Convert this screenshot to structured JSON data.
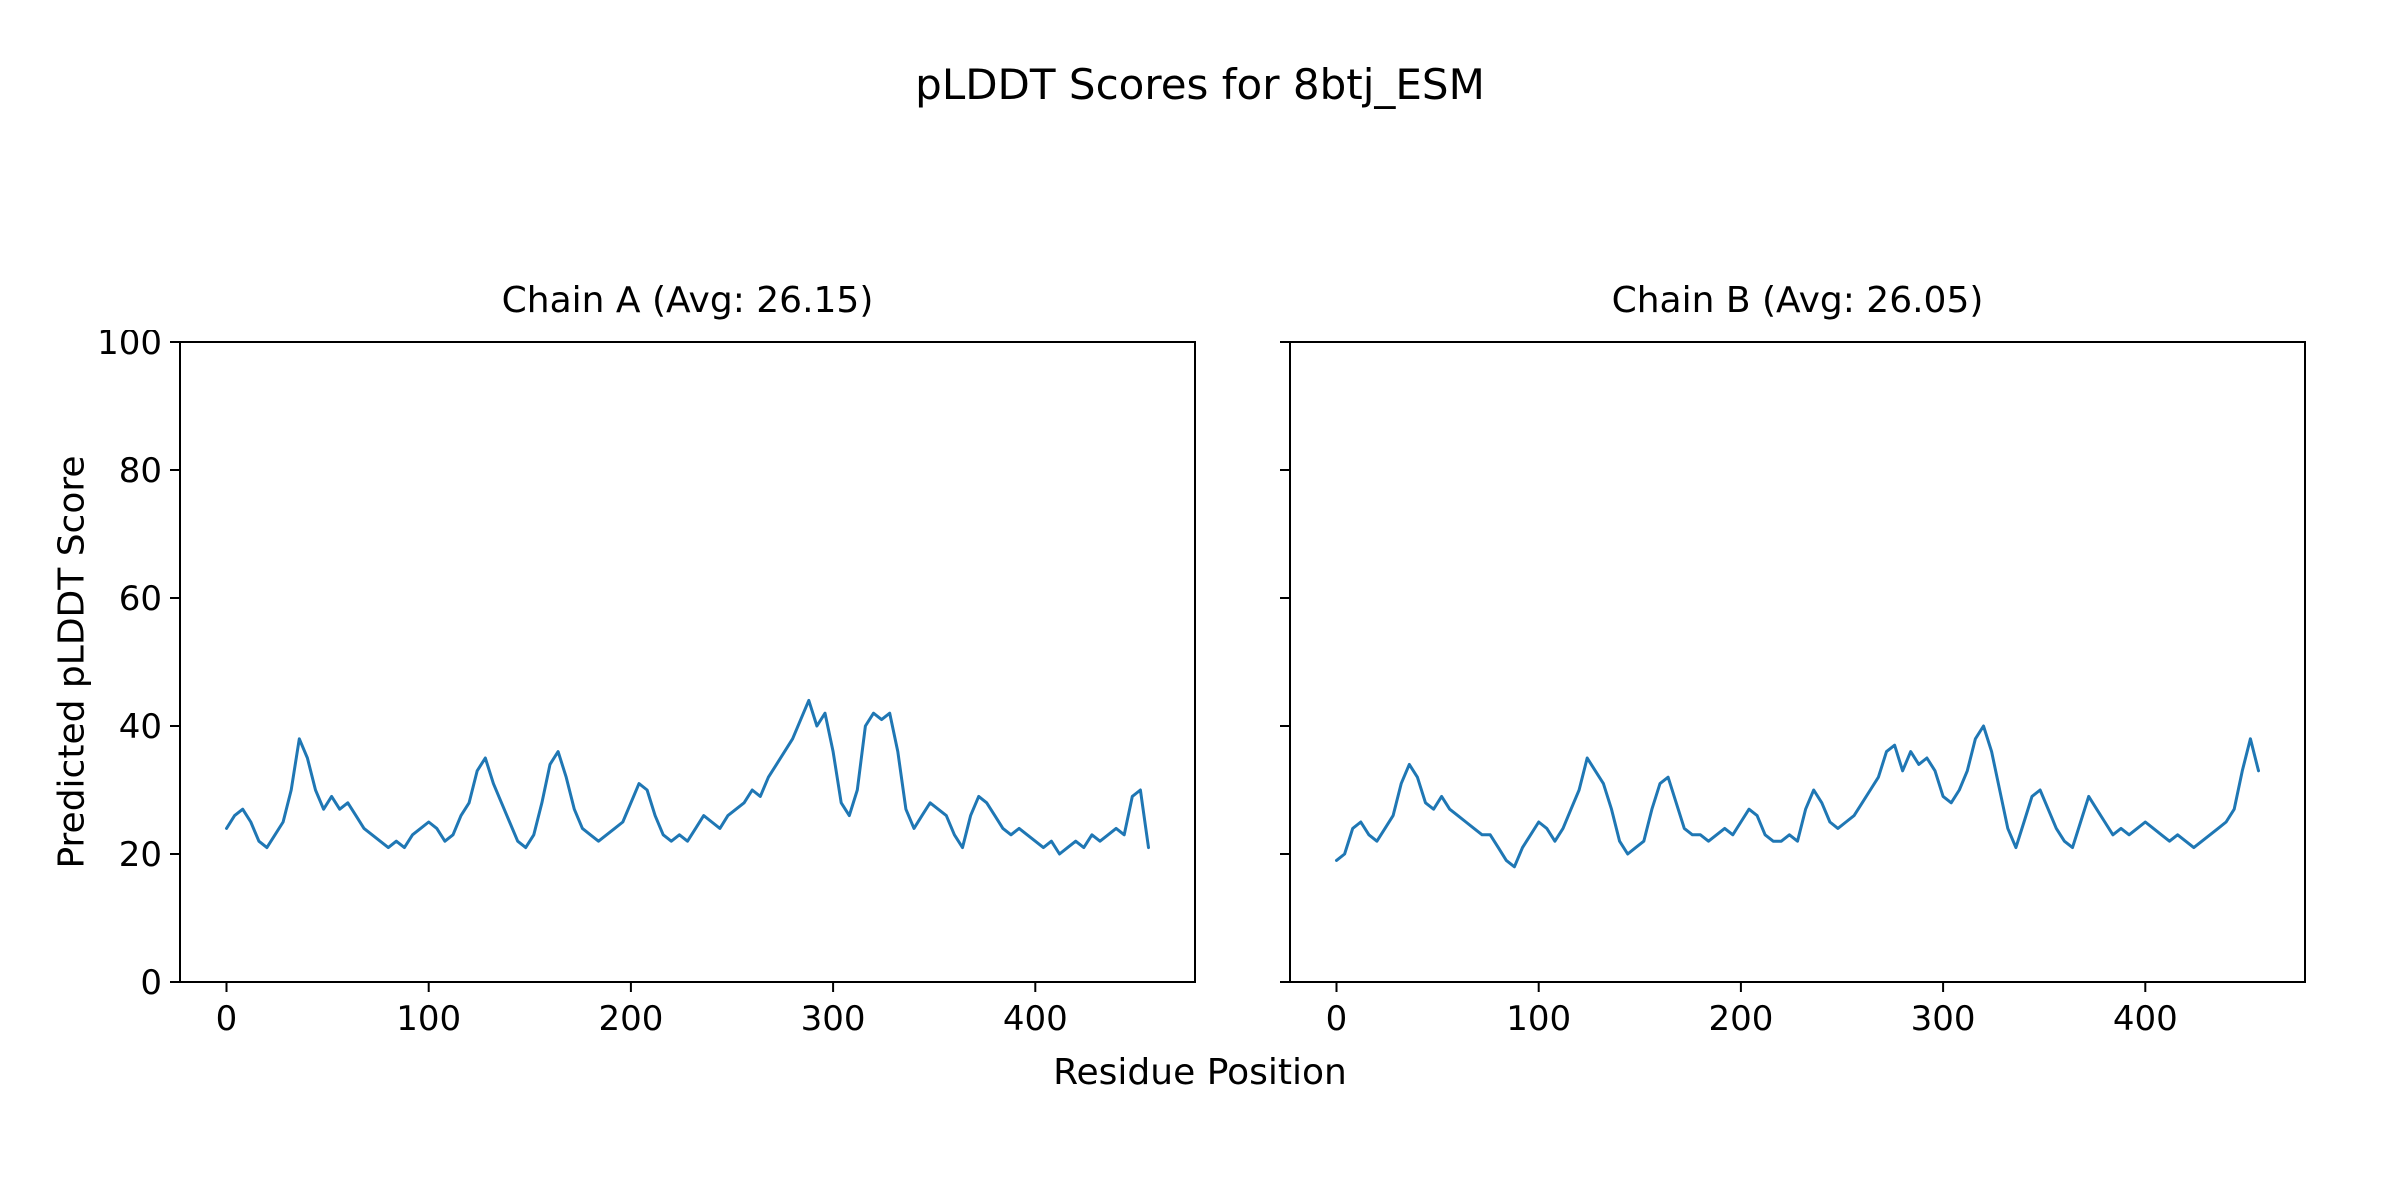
{
  "figure": {
    "title": "pLDDT Scores for 8btj_ESM"
  },
  "chart_data": {
    "type": "line",
    "title": "pLDDT Scores for 8btj_ESM",
    "xlabel": "Residue Position",
    "ylabel": "Predicted pLDDT Score",
    "line_color": "#1f77b4",
    "axis_color": "#000000",
    "xlim": [
      -23,
      479
    ],
    "ylim": [
      0,
      100
    ],
    "x_ticks": [
      0,
      100,
      200,
      300,
      400
    ],
    "y_ticks": [
      0,
      20,
      40,
      60,
      80,
      100
    ],
    "grid": false,
    "legend": "none",
    "subplots": [
      {
        "name": "chain-a",
        "title": "Chain A (Avg: 26.15)",
        "avg": 26.15,
        "x_start": 0,
        "x_step": 4,
        "values": [
          24,
          26,
          27,
          25,
          22,
          21,
          23,
          25,
          30,
          38,
          35,
          30,
          27,
          29,
          27,
          28,
          26,
          24,
          23,
          22,
          21,
          22,
          21,
          23,
          24,
          25,
          24,
          22,
          23,
          26,
          28,
          33,
          35,
          31,
          28,
          25,
          22,
          21,
          23,
          28,
          34,
          36,
          32,
          27,
          24,
          23,
          22,
          23,
          24,
          25,
          28,
          31,
          30,
          26,
          23,
          22,
          23,
          22,
          24,
          26,
          25,
          24,
          26,
          27,
          28,
          30,
          29,
          32,
          34,
          36,
          38,
          41,
          44,
          40,
          42,
          36,
          28,
          26,
          30,
          40,
          42,
          41,
          42,
          36,
          27,
          24,
          26,
          28,
          27,
          26,
          23,
          21,
          26,
          29,
          28,
          26,
          24,
          23,
          24,
          23,
          22,
          21,
          22,
          20,
          21,
          22,
          21,
          23,
          22,
          23,
          24,
          23,
          29,
          30,
          21
        ]
      },
      {
        "name": "chain-b",
        "title": "Chain B (Avg: 26.05)",
        "avg": 26.05,
        "x_start": 0,
        "x_step": 4,
        "values": [
          19,
          20,
          24,
          25,
          23,
          22,
          24,
          26,
          31,
          34,
          32,
          28,
          27,
          29,
          27,
          26,
          25,
          24,
          23,
          23,
          21,
          19,
          18,
          21,
          23,
          25,
          24,
          22,
          24,
          27,
          30,
          35,
          33,
          31,
          27,
          22,
          20,
          21,
          22,
          27,
          31,
          32,
          28,
          24,
          23,
          23,
          22,
          23,
          24,
          23,
          25,
          27,
          26,
          23,
          22,
          22,
          23,
          22,
          27,
          30,
          28,
          25,
          24,
          25,
          26,
          28,
          30,
          32,
          36,
          37,
          33,
          36,
          34,
          35,
          33,
          29,
          28,
          30,
          33,
          38,
          40,
          36,
          30,
          24,
          21,
          25,
          29,
          30,
          27,
          24,
          22,
          21,
          25,
          29,
          27,
          25,
          23,
          24,
          23,
          24,
          25,
          24,
          23,
          22,
          23,
          22,
          21,
          22,
          23,
          24,
          25,
          27,
          33,
          38,
          33
        ]
      }
    ]
  }
}
